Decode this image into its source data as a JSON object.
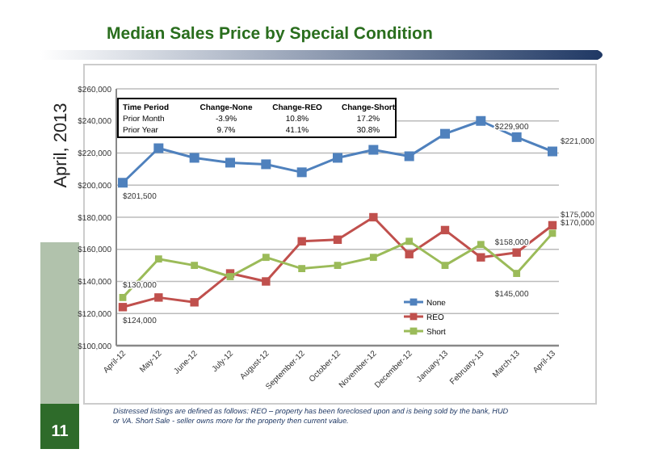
{
  "chart_data": {
    "type": "line",
    "title": "Median Sales Price by Special Condition",
    "subtitle": "April, 2013",
    "categories": [
      "April-12",
      "May-12",
      "June-12",
      "July-12",
      "August-12",
      "September-12",
      "October-12",
      "November-12",
      "December-12",
      "January-13",
      "February-13",
      "March-13",
      "April-13"
    ],
    "series": [
      {
        "name": "None",
        "color": "#4f81bd",
        "values": [
          201500,
          223000,
          217000,
          214000,
          213000,
          208000,
          217000,
          222000,
          218000,
          232000,
          240000,
          229900,
          221000
        ],
        "value_labels": [
          "$201,500",
          null,
          null,
          null,
          null,
          null,
          null,
          null,
          null,
          null,
          null,
          "$229,900",
          "$221,000"
        ]
      },
      {
        "name": "REO",
        "color": "#c0504d",
        "values": [
          124000,
          130000,
          127000,
          145000,
          140000,
          165000,
          166000,
          180000,
          157000,
          172000,
          155000,
          158000,
          175000
        ],
        "value_labels": [
          "$124,000",
          null,
          null,
          null,
          null,
          null,
          null,
          null,
          null,
          null,
          null,
          "$158,000",
          "$175,000"
        ]
      },
      {
        "name": "Short",
        "color": "#9bbb59",
        "values": [
          130000,
          154000,
          150000,
          143000,
          155000,
          148000,
          150000,
          155000,
          165000,
          150000,
          163000,
          145000,
          170000
        ],
        "value_labels": [
          "$130,000",
          null,
          null,
          null,
          null,
          null,
          null,
          null,
          null,
          null,
          null,
          "$145,000",
          "$170,000"
        ]
      }
    ],
    "ylim": [
      100000,
      260000
    ],
    "yticks": [
      {
        "value": 100000,
        "label": "$100,000"
      },
      {
        "value": 120000,
        "label": "$120,000"
      },
      {
        "value": 140000,
        "label": "$140,000"
      },
      {
        "value": 160000,
        "label": "$160,000"
      },
      {
        "value": 180000,
        "label": "$180,000"
      },
      {
        "value": 200000,
        "label": "$200,000"
      },
      {
        "value": 220000,
        "label": "$220,000"
      },
      {
        "value": 240000,
        "label": "$240,000"
      },
      {
        "value": 260000,
        "label": "$260,000"
      }
    ],
    "grid": "y",
    "legend": "bottom",
    "marker": "square",
    "line_style": "solid",
    "annotations": [
      "Time Period",
      "Change-None",
      "Change-REO",
      "Change-Short",
      "Prior Month",
      "-3.9%",
      "10.8%",
      "17.2%",
      "Prior Year",
      "9.7%",
      "41.1%",
      "30.8%",
      "Distressed listings are defined as follows: REO – property has been foreclosed upon and is being sold by the bank, HUD or VA. Short Sale - seller owns more for the property then current value.",
      "11"
    ]
  }
}
